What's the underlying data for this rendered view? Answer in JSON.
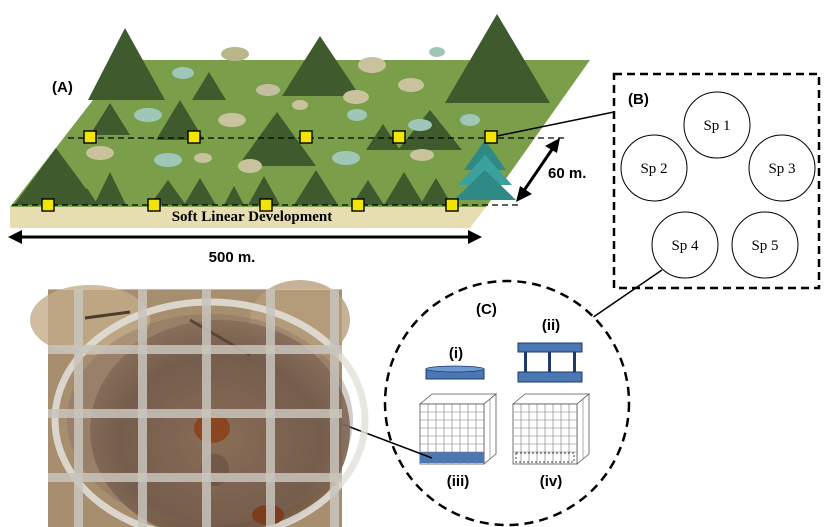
{
  "panel_a": {
    "label": "(A)",
    "road_label": "Soft Linear Development",
    "width_label": "500 m.",
    "height_label": "60 m."
  },
  "panel_b": {
    "label": "(B)",
    "plots": [
      "Sp 1",
      "Sp 2",
      "Sp 3",
      "Sp 4",
      "Sp 5"
    ]
  },
  "panel_c": {
    "label": "(C)",
    "treatments": [
      "(i)",
      "(ii)",
      "(iii)",
      "(iv)"
    ]
  },
  "colors": {
    "vegetation": "#7a9e4a",
    "tree_dark": "#3f5a2c",
    "road": "#e6ddb0",
    "marker": "#f2e600",
    "dish_blue": "#4a78b5"
  },
  "photo": {
    "description_icon": "field-photo-petri-dish-under-mesh"
  }
}
